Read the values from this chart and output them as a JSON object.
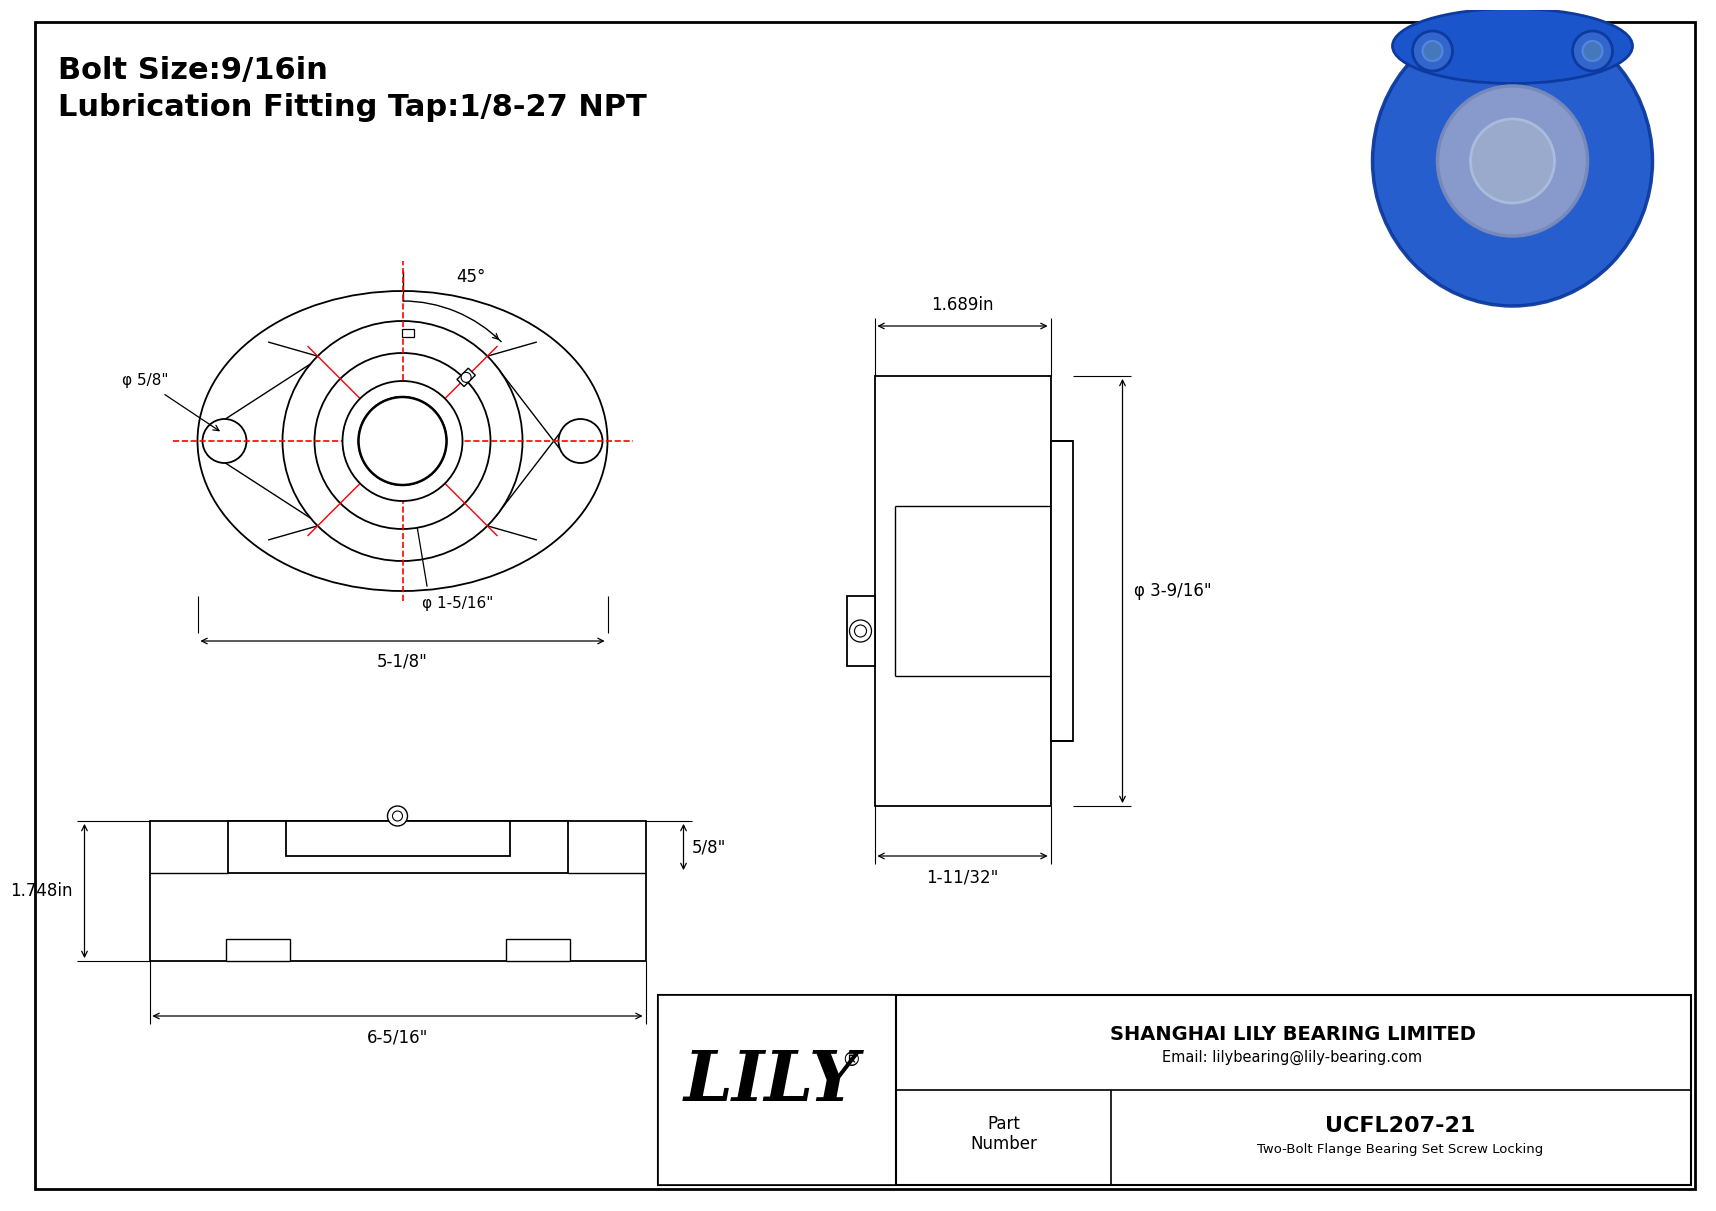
{
  "bg_color": "#ffffff",
  "lc": "#000000",
  "rc": "#ff0000",
  "title1": "Bolt Size:9/16in",
  "title2": "Lubrication Fitting Tap:1/8-27 NPT",
  "dim_bore": "φ 1-5/16\"",
  "dim_fw": "5-1/8\"",
  "dim_bh": "φ 5/8\"",
  "dim_bearing_h": "φ 3-9/16\"",
  "dim_depth": "1.689in",
  "dim_sd": "1-11/32\"",
  "dim_height": "1.748in",
  "dim_bw": "6-5/16\"",
  "dim_ft": "5/8\"",
  "dim_angle": "45°",
  "part_number": "UCFL207-21",
  "part_desc": "Two-Bolt Flange Bearing Set Screw Locking",
  "company": "SHANGHAI LILY BEARING LIMITED",
  "email": "Email: lilybearing@lily-bearing.com",
  "blue1": "#1a55cc",
  "blue2": "#0d3a9e"
}
